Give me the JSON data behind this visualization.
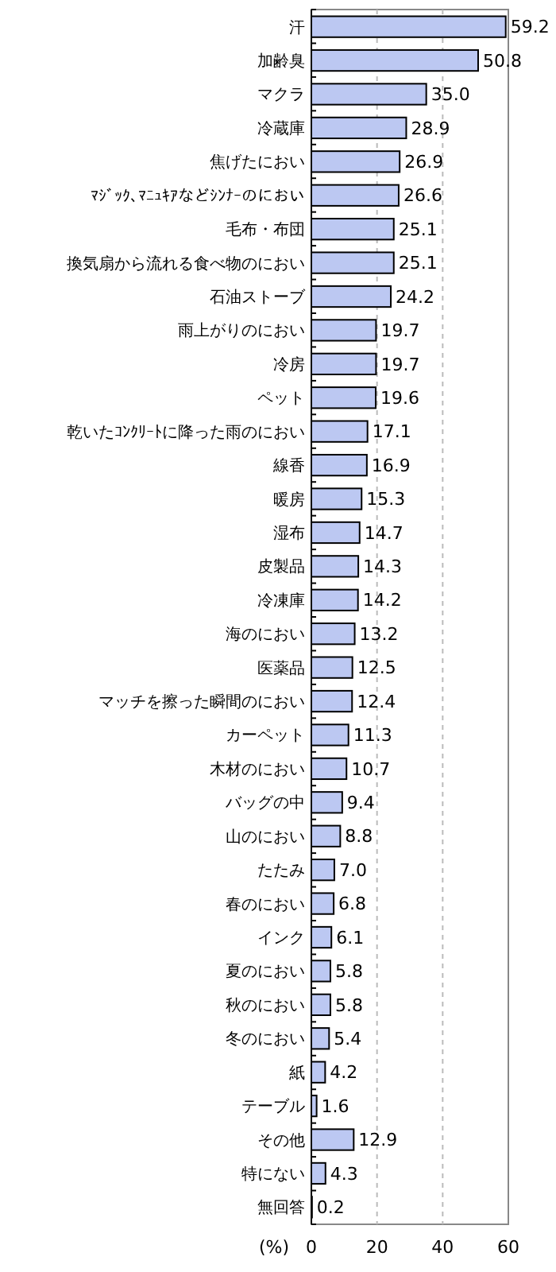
{
  "chart_data": {
    "type": "bar",
    "orientation": "horizontal",
    "xlabel": "(%)",
    "categories": [
      "汗",
      "加齢臭",
      "マクラ",
      "冷蔵庫",
      "焦げたにおい",
      "ﾏｼﾞｯｸ､ﾏﾆｭｷｱなどｼﾝﾅｰのにおい",
      "毛布・布団",
      "換気扇から流れる食べ物のにおい",
      "石油ストーブ",
      "雨上がりのにおい",
      "冷房",
      "ペット",
      "乾いたｺﾝｸﾘｰﾄに降った雨のにおい",
      "線香",
      "暖房",
      "湿布",
      "皮製品",
      "冷凍庫",
      "海のにおい",
      "医薬品",
      "マッチを擦った瞬間のにおい",
      "カーペット",
      "木材のにおい",
      "バッグの中",
      "山のにおい",
      "たたみ",
      "春のにおい",
      "インク",
      "夏のにおい",
      "秋のにおい",
      "冬のにおい",
      "紙",
      "テーブル",
      "その他",
      "特にない",
      "無回答"
    ],
    "values": [
      59.2,
      50.8,
      35.0,
      28.9,
      26.9,
      26.6,
      25.1,
      25.1,
      24.2,
      19.7,
      19.7,
      19.6,
      17.1,
      16.9,
      15.3,
      14.7,
      14.3,
      14.2,
      13.2,
      12.5,
      12.4,
      11.3,
      10.7,
      9.4,
      8.8,
      7.0,
      6.8,
      6.1,
      5.8,
      5.8,
      5.4,
      4.2,
      1.6,
      12.9,
      4.3,
      0.2
    ],
    "value_labels": [
      "59.2",
      "50.8",
      "35.0",
      "28.9",
      "26.9",
      "26.6",
      "25.1",
      "25.1",
      "24.2",
      "19.7",
      "19.7",
      "19.6",
      "17.1",
      "16.9",
      "15.3",
      "14.7",
      "14.3",
      "14.2",
      "13.2",
      "12.5",
      "12.4",
      "11.3",
      "10.7",
      "9.4",
      "8.8",
      "7.0",
      "6.8",
      "6.1",
      "5.8",
      "5.8",
      "5.4",
      "4.2",
      "1.6",
      "12.9",
      "4.3",
      "0.2"
    ],
    "color": "#bcc8f2",
    "xlim": [
      0,
      60
    ],
    "xticks": [
      0,
      20,
      40,
      60
    ],
    "grid": "x"
  }
}
